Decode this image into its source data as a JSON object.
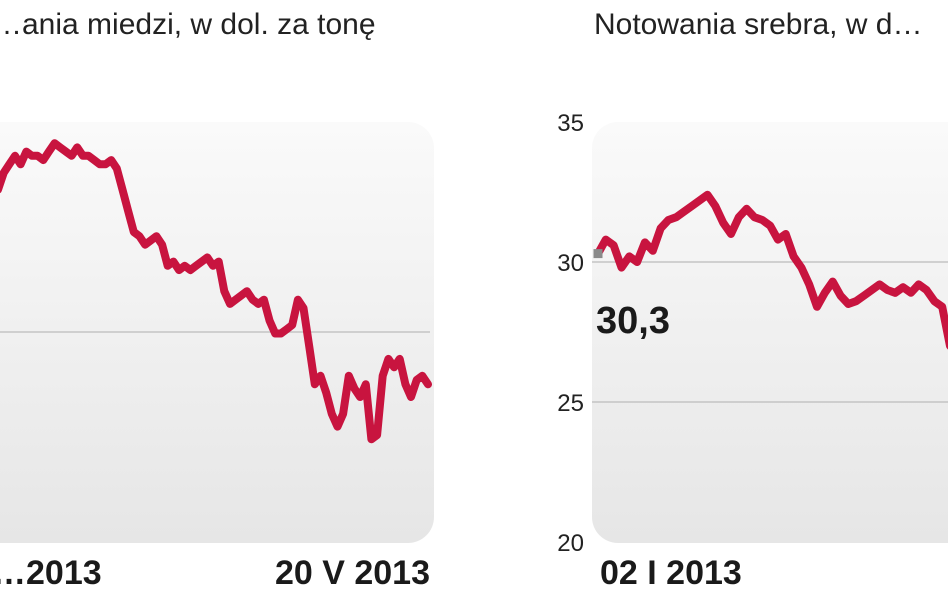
{
  "colors": {
    "series": "#c8143f",
    "panel_top": "#fafafa",
    "panel_bottom": "#e6e6e6",
    "grid": "#c4c4c4",
    "text": "#1a1a1a"
  },
  "chart_data": [
    {
      "type": "line",
      "title": "…ania miedzi, w dol. za tonę",
      "x_start_label": "…2013",
      "x_end_label": "20 V 2013",
      "grid": true,
      "ylim": [
        0,
        100
      ],
      "series": [
        {
          "name": "",
          "values": [
            84,
            88,
            90,
            92,
            90,
            93,
            92,
            92,
            91,
            93,
            95,
            94,
            93,
            92,
            94,
            92,
            92,
            91,
            90,
            90,
            91,
            89,
            84,
            79,
            74,
            73,
            71,
            72,
            73,
            71,
            66,
            67,
            65,
            66,
            65,
            66,
            67,
            68,
            66,
            67,
            60,
            57,
            58,
            59,
            60,
            58,
            57,
            58,
            53,
            50,
            50,
            51,
            52,
            58,
            56,
            47,
            38,
            40,
            36,
            31,
            28,
            31,
            40,
            37,
            35,
            38,
            25,
            26,
            40,
            44,
            42,
            44,
            38,
            35,
            39,
            40,
            38
          ]
        }
      ]
    },
    {
      "type": "line",
      "title": "Notowania srebra, w d…",
      "x_start_label": "02 I 2013",
      "callout": "30,3",
      "y_ticks": [
        "35",
        "30",
        "25",
        "20"
      ],
      "ylim": [
        20,
        35
      ],
      "grid": true,
      "series": [
        {
          "name": "",
          "values": [
            30.3,
            30.8,
            30.6,
            29.8,
            30.2,
            30.0,
            30.7,
            30.4,
            31.2,
            31.5,
            31.6,
            31.8,
            32.0,
            32.2,
            32.4,
            32.0,
            31.4,
            31.0,
            31.6,
            31.9,
            31.6,
            31.5,
            31.3,
            30.8,
            31.0,
            30.2,
            29.8,
            29.2,
            28.4,
            28.9,
            29.3,
            28.8,
            28.5,
            28.6,
            28.8,
            29.0,
            29.2,
            29.0,
            28.9,
            29.1,
            28.9,
            29.2,
            29.0,
            28.6,
            28.4,
            27.0
          ]
        }
      ]
    }
  ]
}
